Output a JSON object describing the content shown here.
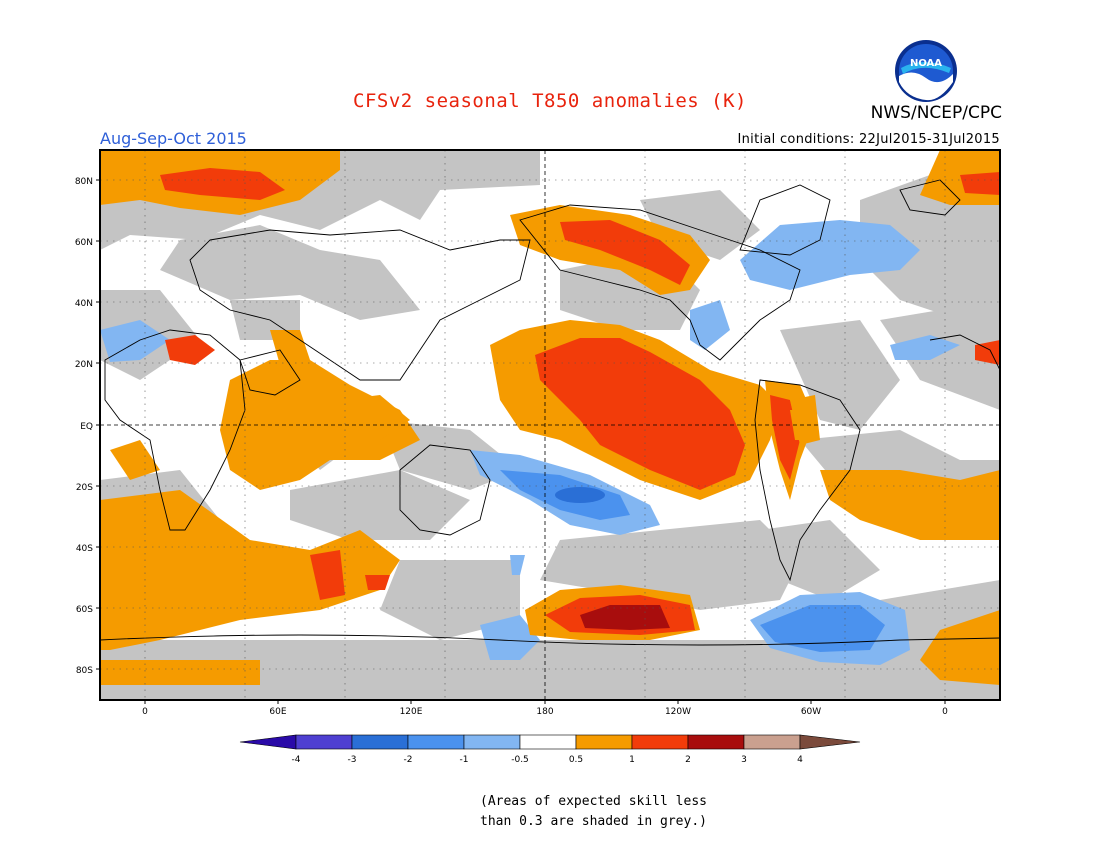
{
  "header": {
    "title": "CFSv2 seasonal T850 anomalies (K)",
    "agency": "NWS/NCEP/CPC",
    "logo_text": "NOAA",
    "season": "Aug-Sep-Oct 2015",
    "initial_conditions": "Initial conditions: 22Jul2015-31Jul2015"
  },
  "map": {
    "lat_labels": [
      "80N",
      "60N",
      "40N",
      "20N",
      "EQ",
      "20S",
      "40S",
      "60S",
      "80S"
    ],
    "lon_labels": [
      "0",
      "60E",
      "120E",
      "180",
      "120W",
      "60W",
      "0"
    ]
  },
  "colorbar": {
    "labels": [
      "-4",
      "-3",
      "-2",
      "-1",
      "-0.5",
      "0.5",
      "1",
      "2",
      "3",
      "4"
    ],
    "colors": [
      "#2a0aa8",
      "#4e3fd1",
      "#2a6fd6",
      "#4b92ee",
      "#82b6f2",
      "#ffffff",
      "#f59b00",
      "#f23c0a",
      "#a80d0d",
      "#caa08f",
      "#7b4a3b"
    ],
    "grey": "#c4c4c4"
  },
  "note": {
    "line1": "(Areas of expected skill less",
    "line2": "than 0.3 are shaded in grey.)"
  }
}
